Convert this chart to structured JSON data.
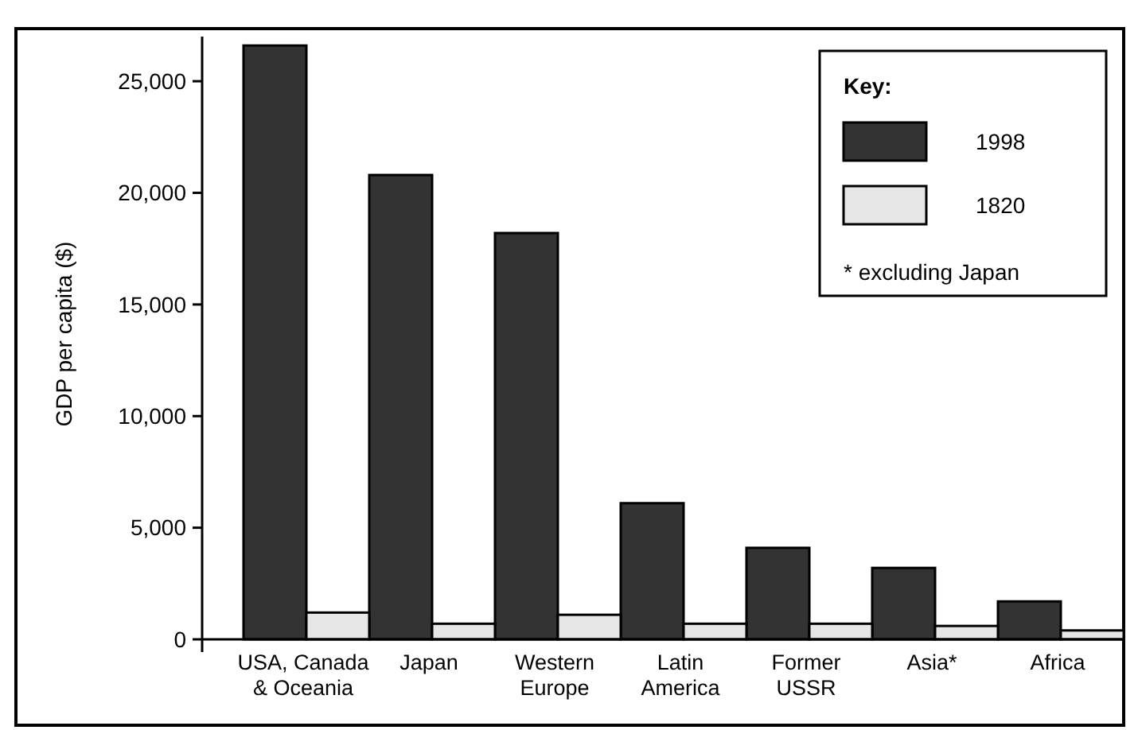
{
  "chart_data": {
    "type": "bar",
    "ylabel": "GDP per capita ($)",
    "legend_title": "Key:",
    "annotations": [
      "* excluding Japan"
    ],
    "categories": [
      "USA, Canada & Oceania",
      "Japan",
      "Western Europe",
      "Latin America",
      "Former USSR",
      "Asia*",
      "Africa"
    ],
    "series": [
      {
        "name": "1998",
        "color": "#333333",
        "values": [
          26600,
          20800,
          18200,
          6100,
          4100,
          3200,
          1700
        ]
      },
      {
        "name": "1820",
        "color": "#e6e6e6",
        "values": [
          1200,
          700,
          1100,
          700,
          700,
          600,
          400
        ]
      }
    ],
    "ylim": [
      0,
      27000
    ],
    "yticks": [
      {
        "value": 0,
        "label": "0"
      },
      {
        "value": 5000,
        "label": "5,000"
      },
      {
        "value": 10000,
        "label": "10,000"
      },
      {
        "value": 15000,
        "label": "15,000"
      },
      {
        "value": 20000,
        "label": "20,000"
      },
      {
        "value": 25000,
        "label": "25,000"
      }
    ],
    "grid": false,
    "legend": "top right"
  }
}
